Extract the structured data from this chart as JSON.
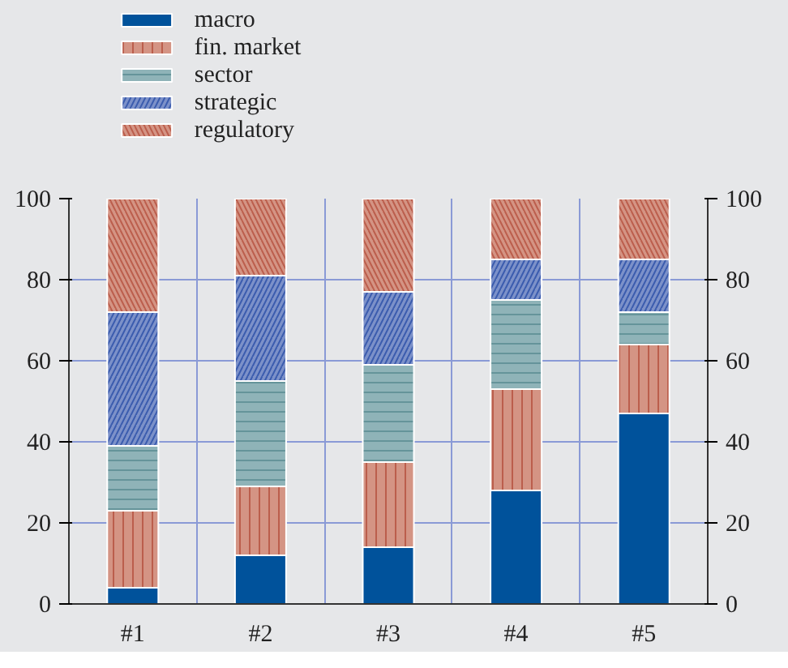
{
  "chart_data": {
    "type": "bar",
    "stacked": true,
    "categories": [
      "#1",
      "#2",
      "#3",
      "#4",
      "#5"
    ],
    "series": [
      {
        "name": "macro",
        "color": "#00529b",
        "values": [
          4,
          12,
          14,
          28,
          47
        ]
      },
      {
        "name": "fin. market",
        "color": "#d49484",
        "values": [
          19,
          17,
          21,
          25,
          17
        ]
      },
      {
        "name": "sector",
        "color": "#8fb3b8",
        "values": [
          16,
          26,
          24,
          22,
          8
        ]
      },
      {
        "name": "strategic",
        "color": "#7c91c9",
        "values": [
          33,
          26,
          18,
          10,
          13
        ]
      },
      {
        "name": "regulatory",
        "color": "#d49484",
        "values": [
          28,
          19,
          23,
          15,
          15
        ]
      }
    ],
    "ylim": [
      0,
      100
    ],
    "yticks": [
      0,
      20,
      40,
      60,
      80,
      100
    ],
    "y2lim": [
      0,
      100
    ],
    "y2ticks": [
      0,
      20,
      40,
      60,
      80,
      100
    ],
    "grid": true,
    "legend": "top left"
  }
}
